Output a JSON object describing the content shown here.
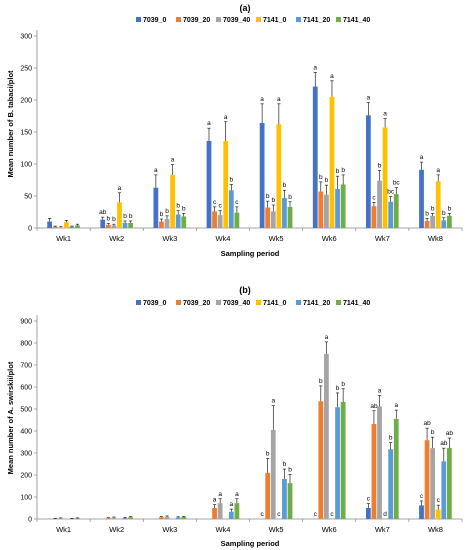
{
  "chart_data": [
    {
      "type": "bar",
      "title": "(a)",
      "xlabel": "Sampling period",
      "ylabel": "Mean number of B. tabaci/plot",
      "ylim": [
        0,
        300
      ],
      "yticks": [
        0,
        50,
        100,
        150,
        200,
        250,
        300
      ],
      "grid": false,
      "legend_position": "top",
      "categories": [
        "Wk1",
        "Wk2",
        "Wk3",
        "Wk4",
        "Wk5",
        "Wk6",
        "Wk7",
        "Wk8"
      ],
      "series": [
        {
          "name": "7039_0",
          "color": "#4472C4",
          "values": [
            10,
            13,
            63,
            136,
            164,
            221,
            176,
            91
          ],
          "errors": [
            5,
            4,
            20,
            20,
            30,
            22,
            20,
            12
          ],
          "letters": [
            "",
            "ab",
            "a",
            "a",
            "a",
            "a",
            "a",
            "a"
          ]
        },
        {
          "name": "7039_20",
          "color": "#ED7D31",
          "values": [
            2,
            5,
            10,
            26,
            32,
            57,
            34,
            11
          ],
          "errors": [
            1,
            2,
            4,
            7,
            10,
            15,
            6,
            4
          ],
          "letters": [
            "",
            "b",
            "b",
            "c",
            "b",
            "b",
            "c",
            "b"
          ]
        },
        {
          "name": "7039_40",
          "color": "#A5A5A5",
          "values": [
            1,
            4,
            14,
            20,
            26,
            52,
            74,
            19
          ],
          "errors": [
            1,
            2,
            5,
            7,
            10,
            15,
            16,
            4
          ],
          "letters": [
            "",
            "b",
            "b",
            "c",
            "b",
            "b",
            "b",
            "b"
          ]
        },
        {
          "name": "7141_0",
          "color": "#FFC000",
          "values": [
            9,
            40,
            83,
            136,
            162,
            205,
            157,
            73
          ],
          "errors": [
            3,
            15,
            16,
            30,
            32,
            25,
            14,
            10
          ],
          "letters": [
            "",
            "a",
            "a",
            "a",
            "a",
            "a",
            "a",
            "a"
          ]
        },
        {
          "name": "7141_20",
          "color": "#5B9BD5",
          "values": [
            2,
            8,
            21,
            59,
            47,
            61,
            41,
            12
          ],
          "errors": [
            1,
            3,
            6,
            9,
            12,
            20,
            8,
            4
          ],
          "letters": [
            "",
            "b",
            "b",
            "b",
            "b",
            "b",
            "bc",
            "b"
          ]
        },
        {
          "name": "7141_40",
          "color": "#70AD47",
          "values": [
            4,
            8,
            18,
            24,
            33,
            68,
            53,
            19
          ],
          "errors": [
            2,
            3,
            5,
            9,
            8,
            15,
            10,
            4
          ],
          "letters": [
            "",
            "b",
            "b",
            "c",
            "b",
            "b",
            "bc",
            "b"
          ]
        }
      ]
    },
    {
      "type": "bar",
      "title": "(b)",
      "xlabel": "Sampling period",
      "ylabel": "Mean number of A. swirskii/plot",
      "ylim": [
        0,
        900
      ],
      "yticks": [
        0,
        100,
        200,
        300,
        400,
        500,
        600,
        700,
        800,
        900
      ],
      "grid": false,
      "legend_position": "top",
      "categories": [
        "Wk1",
        "Wk2",
        "Wk3",
        "Wk4",
        "Wk5",
        "Wk6",
        "Wk7",
        "Wk8"
      ],
      "series": [
        {
          "name": "7039_0",
          "color": "#4472C4",
          "values": [
            0,
            0,
            0,
            0,
            0,
            0,
            50,
            62
          ],
          "errors": [
            0,
            0,
            0,
            0,
            0,
            0,
            20,
            20
          ],
          "letters": [
            "",
            "",
            "",
            "",
            "c",
            "c",
            "c",
            "c"
          ]
        },
        {
          "name": "7039_20",
          "color": "#ED7D31",
          "values": [
            2,
            4,
            8,
            50,
            210,
            535,
            432,
            358
          ],
          "errors": [
            1,
            2,
            3,
            15,
            65,
            70,
            60,
            55
          ],
          "letters": [
            "",
            "",
            "",
            "a",
            "b",
            "b",
            "ab",
            "ab"
          ]
        },
        {
          "name": "7039_40",
          "color": "#A5A5A5",
          "values": [
            3,
            6,
            10,
            72,
            405,
            750,
            512,
            322
          ],
          "errors": [
            2,
            3,
            4,
            20,
            110,
            55,
            50,
            50
          ],
          "letters": [
            "",
            "",
            "",
            "a",
            "a",
            "a",
            "a",
            "b"
          ]
        },
        {
          "name": "7141_0",
          "color": "#FFC000",
          "values": [
            0,
            0,
            0,
            0,
            0,
            0,
            0,
            43
          ],
          "errors": [
            0,
            0,
            0,
            0,
            0,
            0,
            0,
            20
          ],
          "letters": [
            "",
            "",
            "",
            "",
            "c",
            "c",
            "d",
            "c"
          ]
        },
        {
          "name": "7141_20",
          "color": "#5B9BD5",
          "values": [
            2,
            5,
            7,
            33,
            182,
            508,
            317,
            262
          ],
          "errors": [
            1,
            2,
            3,
            12,
            45,
            65,
            30,
            60
          ],
          "letters": [
            "",
            "",
            "",
            "a",
            "b",
            "b",
            "b",
            "ab"
          ]
        },
        {
          "name": "7141_40",
          "color": "#70AD47",
          "values": [
            3,
            8,
            9,
            72,
            163,
            532,
            455,
            323
          ],
          "errors": [
            2,
            3,
            3,
            20,
            40,
            60,
            40,
            45
          ],
          "letters": [
            "",
            "",
            "",
            "a",
            "b",
            "b",
            "a",
            "ab"
          ]
        }
      ]
    }
  ]
}
